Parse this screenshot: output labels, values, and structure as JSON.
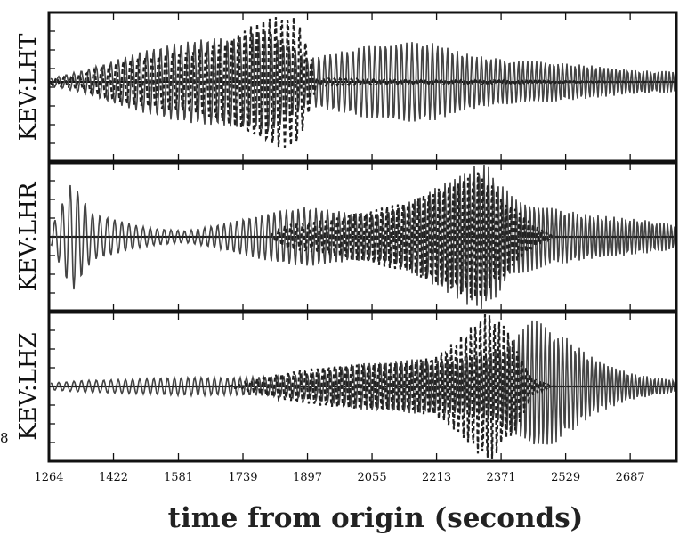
{
  "chart_data": {
    "type": "line",
    "panels": [
      {
        "label": "KEV:LHT",
        "series": [
          {
            "style": "solid",
            "envelope": [
              [
                1264,
                0.05
              ],
              [
                1330,
                0.18
              ],
              [
                1420,
                0.35
              ],
              [
                1500,
                0.45
              ],
              [
                1600,
                0.55
              ],
              [
                1700,
                0.7
              ],
              [
                1800,
                0.95
              ],
              [
                1897,
                0.4
              ],
              [
                2000,
                0.45
              ],
              [
                2100,
                0.55
              ],
              [
                2213,
                0.65
              ],
              [
                2300,
                0.5
              ],
              [
                2400,
                0.35
              ],
              [
                2529,
                0.25
              ],
              [
                2687,
                0.2
              ],
              [
                2800,
                0.2
              ]
            ]
          },
          {
            "style": "dashed",
            "envelope": [
              [
                1264,
                0.05
              ],
              [
                1350,
                0.12
              ],
              [
                1422,
                0.25
              ],
              [
                1500,
                0.35
              ],
              [
                1600,
                0.5
              ],
              [
                1700,
                0.75
              ],
              [
                1760,
                0.95
              ],
              [
                1820,
                1.0
              ],
              [
                1870,
                0.9
              ],
              [
                1897,
                0.5
              ],
              [
                1920,
                0.05
              ],
              [
                2800,
                0.0
              ]
            ]
          }
        ]
      },
      {
        "label": "KEV:LHR",
        "series": [
          {
            "style": "solid",
            "envelope": [
              [
                1264,
                0.05
              ],
              [
                1320,
                0.7
              ],
              [
                1370,
                0.3
              ],
              [
                1500,
                0.15
              ],
              [
                1600,
                0.1
              ],
              [
                1700,
                0.2
              ],
              [
                1800,
                0.3
              ],
              [
                1900,
                0.4
              ],
              [
                2055,
                0.4
              ],
              [
                2150,
                0.55
              ],
              [
                2250,
                0.75
              ],
              [
                2330,
                0.95
              ],
              [
                2400,
                0.55
              ],
              [
                2529,
                0.45
              ],
              [
                2600,
                0.35
              ],
              [
                2687,
                0.25
              ],
              [
                2800,
                0.15
              ]
            ]
          },
          {
            "style": "dashed",
            "envelope": [
              [
                1264,
                0.0
              ],
              [
                1800,
                0.0
              ],
              [
                1850,
                0.2
              ],
              [
                2000,
                0.35
              ],
              [
                2150,
                0.45
              ],
              [
                2250,
                0.7
              ],
              [
                2320,
                1.0
              ],
              [
                2371,
                0.7
              ],
              [
                2450,
                0.2
              ],
              [
                2500,
                0.0
              ],
              [
                2800,
                0.0
              ]
            ]
          }
        ]
      },
      {
        "label": "KEV:LHZ",
        "series": [
          {
            "style": "solid",
            "envelope": [
              [
                1264,
                0.05
              ],
              [
                1350,
                0.1
              ],
              [
                1500,
                0.1
              ],
              [
                1700,
                0.12
              ],
              [
                1897,
                0.2
              ],
              [
                2055,
                0.3
              ],
              [
                2213,
                0.4
              ],
              [
                2300,
                0.5
              ],
              [
                2371,
                0.6
              ],
              [
                2450,
                0.9
              ],
              [
                2529,
                0.6
              ],
              [
                2600,
                0.35
              ],
              [
                2687,
                0.2
              ],
              [
                2800,
                0.1
              ]
            ]
          },
          {
            "style": "dashed",
            "envelope": [
              [
                1264,
                0.0
              ],
              [
                1700,
                0.0
              ],
              [
                1800,
                0.15
              ],
              [
                1950,
                0.25
              ],
              [
                2100,
                0.35
              ],
              [
                2213,
                0.5
              ],
              [
                2300,
                0.85
              ],
              [
                2340,
                1.0
              ],
              [
                2400,
                0.6
              ],
              [
                2450,
                0.1
              ],
              [
                2500,
                0.0
              ],
              [
                2800,
                0.0
              ]
            ]
          }
        ]
      }
    ],
    "xticks": [
      "1264",
      "1422",
      "1581",
      "1739",
      "1897",
      "2055",
      "2213",
      "2371",
      "2529",
      "2687"
    ],
    "xlim": [
      1264,
      2800
    ],
    "xlabel": "time from origin (seconds)",
    "stray_label": "8",
    "grid": false
  }
}
